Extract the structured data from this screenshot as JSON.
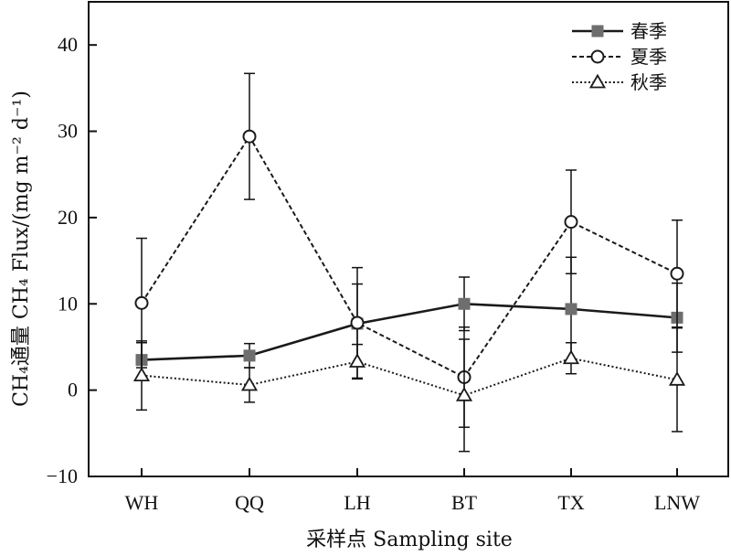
{
  "chart_data": {
    "type": "line",
    "categories": [
      "WH",
      "QQ",
      "LH",
      "BT",
      "TX",
      "LNW"
    ],
    "xlabel": "采样点 Sampling site",
    "ylabel": "CH₄通量 CH₄ Flux/(mg m⁻² d⁻¹)",
    "ylim": [
      -10,
      45
    ],
    "yticks": [
      -10,
      0,
      10,
      20,
      30,
      40
    ],
    "grid": false,
    "legend_position": "top-right",
    "series": [
      {
        "name": "春季",
        "values": [
          3.5,
          4.0,
          7.7,
          10.0,
          9.4,
          8.4
        ],
        "err": [
          2.0,
          1.4,
          4.6,
          3.1,
          6.0,
          4.0
        ],
        "marker": "filled-square",
        "linestyle": "solid",
        "color": "#1a1a1a",
        "marker_color": "#6e6e6e"
      },
      {
        "name": "夏季",
        "values": [
          10.1,
          29.4,
          7.8,
          1.5,
          19.5,
          13.5
        ],
        "err": [
          7.5,
          7.3,
          6.4,
          5.8,
          6.0,
          6.2
        ],
        "marker": "open-circle",
        "linestyle": "dashed",
        "color": "#1a1a1a"
      },
      {
        "name": "秋季",
        "values": [
          1.7,
          0.6,
          3.3,
          -0.6,
          3.7,
          1.2
        ],
        "err": [
          4.0,
          2.0,
          2.0,
          6.5,
          1.8,
          6.0
        ],
        "marker": "open-triangle",
        "linestyle": "dotted",
        "color": "#1a1a1a"
      }
    ]
  }
}
